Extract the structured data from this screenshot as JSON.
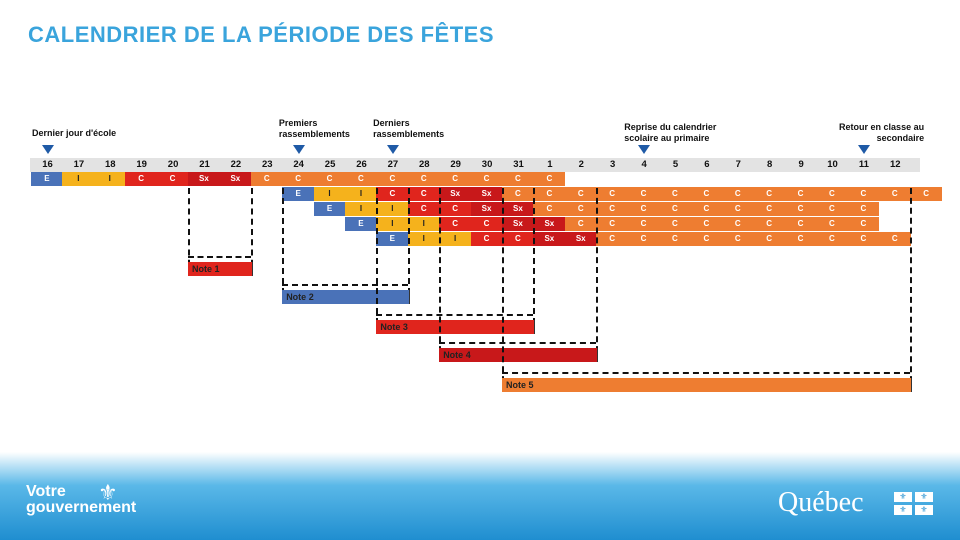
{
  "title": "CALENDRIER DE LA PÉRIODE DES FÊTES",
  "colors": {
    "title": "#3aa4dc",
    "E": "#4a72b8",
    "I": "#f5b21c",
    "C_red": "#e0251d",
    "Sx": "#c8181a",
    "C_orange": "#ee7d31",
    "axis": "#e0e0e0",
    "marker": "#1f5aa6"
  },
  "days": [
    "16",
    "17",
    "18",
    "19",
    "20",
    "21",
    "22",
    "23",
    "24",
    "25",
    "26",
    "27",
    "28",
    "29",
    "30",
    "31",
    "1",
    "2",
    "3",
    "4",
    "5",
    "6",
    "7",
    "8",
    "9",
    "10",
    "11",
    "12"
  ],
  "annotations": [
    {
      "text": "Dernier jour d'école",
      "col": 0
    },
    {
      "text": "Premiers rassemblements",
      "col": 8
    },
    {
      "text": "Derniers rassemblements",
      "col": 11
    },
    {
      "text": "Reprise du calendrier scolaire au primaire",
      "col": 19
    },
    {
      "text": "Retour en classe au secondaire",
      "col": 26
    }
  ],
  "rows": [
    {
      "start": 0,
      "cells": [
        [
          "E",
          "blue"
        ],
        [
          "I",
          "yellow"
        ],
        [
          "I",
          "yellow"
        ],
        [
          "C",
          "red"
        ],
        [
          "C",
          "red"
        ],
        [
          "Sx",
          "dred"
        ],
        [
          "Sx",
          "dred"
        ],
        [
          "C",
          "orange"
        ],
        [
          "C",
          "orange"
        ],
        [
          "C",
          "orange"
        ],
        [
          "C",
          "orange"
        ],
        [
          "C",
          "orange"
        ],
        [
          "C",
          "orange"
        ],
        [
          "C",
          "orange"
        ],
        [
          "C",
          "orange"
        ],
        [
          "C",
          "orange"
        ],
        [
          "C",
          "orange"
        ]
      ]
    },
    {
      "start": 8,
      "cells": [
        [
          "E",
          "blue"
        ],
        [
          "I",
          "yellow"
        ],
        [
          "I",
          "yellow"
        ],
        [
          "C",
          "red"
        ],
        [
          "C",
          "red"
        ],
        [
          "Sx",
          "dred"
        ],
        [
          "Sx",
          "dred"
        ],
        [
          "C",
          "orange"
        ],
        [
          "C",
          "orange"
        ],
        [
          "C",
          "orange"
        ],
        [
          "C",
          "orange"
        ],
        [
          "C",
          "orange"
        ],
        [
          "C",
          "orange"
        ],
        [
          "C",
          "orange"
        ],
        [
          "C",
          "orange"
        ],
        [
          "C",
          "orange"
        ],
        [
          "C",
          "orange"
        ],
        [
          "C",
          "orange"
        ],
        [
          "C",
          "orange"
        ],
        [
          "C",
          "orange"
        ],
        [
          "C",
          "orange"
        ]
      ]
    },
    {
      "start": 9,
      "cells": [
        [
          "E",
          "blue"
        ],
        [
          "I",
          "yellow"
        ],
        [
          "I",
          "yellow"
        ],
        [
          "C",
          "red"
        ],
        [
          "C",
          "red"
        ],
        [
          "Sx",
          "dred"
        ],
        [
          "Sx",
          "dred"
        ],
        [
          "C",
          "orange"
        ],
        [
          "C",
          "orange"
        ],
        [
          "C",
          "orange"
        ],
        [
          "C",
          "orange"
        ],
        [
          "C",
          "orange"
        ],
        [
          "C",
          "orange"
        ],
        [
          "C",
          "orange"
        ],
        [
          "C",
          "orange"
        ],
        [
          "C",
          "orange"
        ],
        [
          "C",
          "orange"
        ],
        [
          "C",
          "orange"
        ]
      ]
    },
    {
      "start": 10,
      "cells": [
        [
          "E",
          "blue"
        ],
        [
          "I",
          "yellow"
        ],
        [
          "I",
          "yellow"
        ],
        [
          "C",
          "red"
        ],
        [
          "C",
          "red"
        ],
        [
          "Sx",
          "dred"
        ],
        [
          "Sx",
          "dred"
        ],
        [
          "C",
          "orange"
        ],
        [
          "C",
          "orange"
        ],
        [
          "C",
          "orange"
        ],
        [
          "C",
          "orange"
        ],
        [
          "C",
          "orange"
        ],
        [
          "C",
          "orange"
        ],
        [
          "C",
          "orange"
        ],
        [
          "C",
          "orange"
        ],
        [
          "C",
          "orange"
        ],
        [
          "C",
          "orange"
        ]
      ]
    },
    {
      "start": 11,
      "cells": [
        [
          "E",
          "blue"
        ],
        [
          "I",
          "yellow"
        ],
        [
          "I",
          "yellow"
        ],
        [
          "C",
          "red"
        ],
        [
          "C",
          "red"
        ],
        [
          "Sx",
          "dred"
        ],
        [
          "Sx",
          "dred"
        ],
        [
          "C",
          "orange"
        ],
        [
          "C",
          "orange"
        ],
        [
          "C",
          "orange"
        ],
        [
          "C",
          "orange"
        ],
        [
          "C",
          "orange"
        ],
        [
          "C",
          "orange"
        ],
        [
          "C",
          "orange"
        ],
        [
          "C",
          "orange"
        ],
        [
          "C",
          "orange"
        ],
        [
          "C",
          "orange"
        ]
      ]
    }
  ],
  "notes": [
    {
      "label": "Note 1",
      "from": 5,
      "to": 7,
      "color": "red"
    },
    {
      "label": "Note 2",
      "from": 8,
      "to": 12,
      "color": "blue"
    },
    {
      "label": "Note 3",
      "from": 11,
      "to": 16,
      "color": "red"
    },
    {
      "label": "Note 4",
      "from": 13,
      "to": 18,
      "color": "dred"
    },
    {
      "label": "Note 5",
      "from": 15,
      "to": 28,
      "color": "orange"
    }
  ],
  "footer": {
    "votre": "Votre",
    "gouvernement": "gouvernement",
    "quebec": "Québec"
  }
}
